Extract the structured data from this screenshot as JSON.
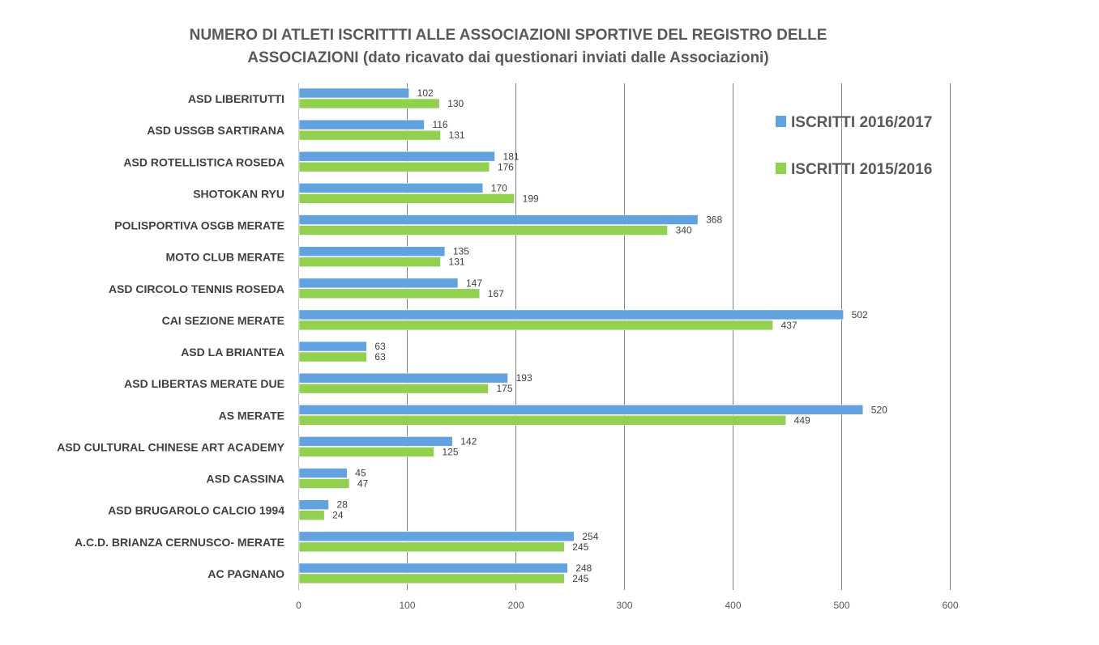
{
  "chart_data": {
    "type": "bar",
    "orientation": "horizontal",
    "title": "NUMERO DI ATLETI ISCRITTTI ALLE ASSOCIAZIONI SPORTIVE DEL REGISTRO DELLE ASSOCIAZIONI (dato ricavato dai questionari inviati dalle Associazioni)",
    "title_lines": [
      "NUMERO DI ATLETI ISCRITTTI ALLE ASSOCIAZIONI SPORTIVE DEL REGISTRO DELLE",
      "ASSOCIAZIONI (dato ricavato dai questionari inviati dalle Associazioni)"
    ],
    "categories": [
      "ASD LIBERITUTTI",
      "ASD USSGB  SARTIRANA",
      "ASD ROTELLISTICA ROSEDA",
      "SHOTOKAN RYU",
      "POLISPORTIVA OSGB MERATE",
      "MOTO CLUB MERATE",
      "ASD CIRCOLO TENNIS ROSEDA",
      "CAI SEZIONE MERATE",
      "ASD LA BRIANTEA",
      "ASD LIBERTAS MERATE DUE",
      "AS MERATE",
      "ASD CULTURAL CHINESE ART  ACADEMY",
      "ASD CASSINA",
      "ASD BRUGAROLO CALCIO 1994",
      "A.C.D. BRIANZA CERNUSCO- MERATE",
      "AC PAGNANO"
    ],
    "series": [
      {
        "name": "ISCRITTI 2016/2017",
        "color": "#62A3DF",
        "values": [
          102,
          116,
          181,
          170,
          368,
          135,
          147,
          502,
          63,
          193,
          520,
          142,
          45,
          28,
          254,
          248
        ]
      },
      {
        "name": "ISCRITTI 2015/2016",
        "color": "#92D050",
        "values": [
          130,
          131,
          176,
          199,
          340,
          131,
          167,
          437,
          63,
          175,
          449,
          125,
          47,
          24,
          245,
          245
        ]
      }
    ],
    "xlim": [
      0,
      600
    ],
    "xticks": [
      0,
      100,
      200,
      300,
      400,
      500,
      600
    ],
    "xlabel": "",
    "ylabel": "",
    "grid": true,
    "legend_position": "top-right"
  }
}
